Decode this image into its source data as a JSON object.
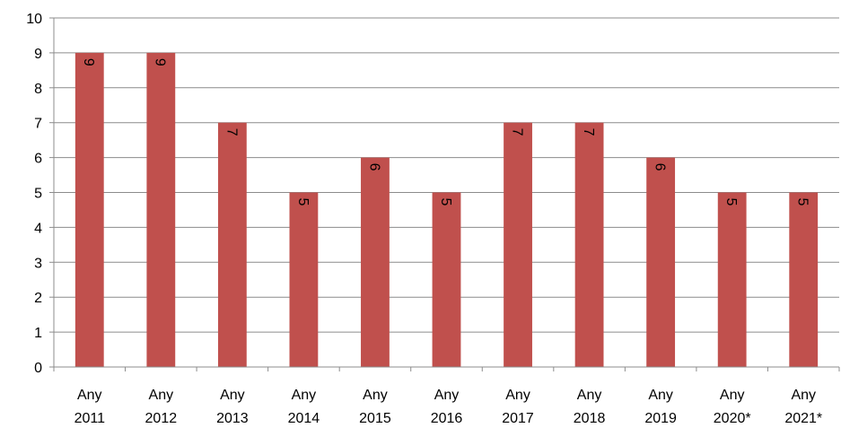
{
  "chart_data": {
    "type": "bar",
    "title": "",
    "xlabel": "",
    "ylabel": "",
    "categories": [
      [
        "Any",
        "2011"
      ],
      [
        "Any",
        "2012"
      ],
      [
        "Any",
        "2013"
      ],
      [
        "Any",
        "2014"
      ],
      [
        "Any",
        "2015"
      ],
      [
        "Any",
        "2016"
      ],
      [
        "Any",
        "2017"
      ],
      [
        "Any",
        "2018"
      ],
      [
        "Any",
        "2019"
      ],
      [
        "Any",
        "2020*"
      ],
      [
        "Any",
        "2021*"
      ]
    ],
    "values": [
      9,
      9,
      7,
      5,
      6,
      5,
      7,
      7,
      6,
      5,
      5
    ],
    "data_labels": [
      "9",
      "9",
      "7",
      "5",
      "6",
      "5",
      "7",
      "7",
      "6",
      "5",
      "5"
    ],
    "data_label_rotation": 90,
    "ylim": [
      0,
      10
    ],
    "yticks": [
      "0",
      "1",
      "2",
      "3",
      "4",
      "5",
      "6",
      "7",
      "8",
      "9",
      "10"
    ],
    "grid": true,
    "legend": "none",
    "colors": {
      "bar": "#c0504d",
      "grid": "#8c8c8c"
    }
  }
}
